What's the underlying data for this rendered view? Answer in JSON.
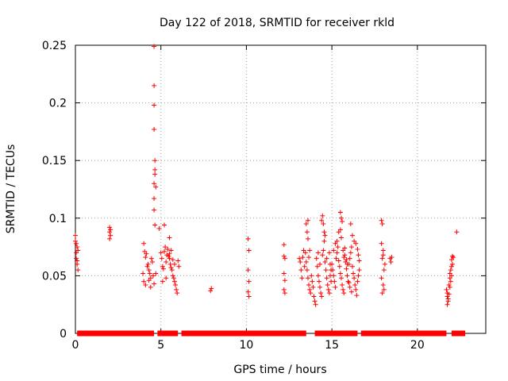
{
  "chart_data": {
    "type": "scatter",
    "title": "Day 122 of 2018, SRMTID for receiver rkld",
    "xlabel": "GPS time / hours",
    "ylabel": "SRMTID / TECUs",
    "xlim": [
      0,
      24
    ],
    "ylim": [
      0,
      0.25
    ],
    "xticks": [
      0,
      5,
      10,
      15,
      20
    ],
    "yticks": [
      0,
      0.05,
      0.1,
      0.15,
      0.2,
      0.25
    ],
    "xtick_labels": [
      "0",
      "5",
      "10",
      "15",
      "20"
    ],
    "ytick_labels": [
      "0",
      "0.05",
      "0.1",
      "0.15",
      "0.2",
      "0.25"
    ],
    "grid": true,
    "marker": "+",
    "color": "#ff0000",
    "zero_segments": [
      [
        0.1,
        4.6
      ],
      [
        4.8,
        6.0
      ],
      [
        6.2,
        13.5
      ],
      [
        14.0,
        16.5
      ],
      [
        16.7,
        21.7
      ],
      [
        22.0,
        22.8
      ]
    ],
    "series": [
      {
        "name": "SRMTID",
        "points": [
          [
            0.0,
            0.085
          ],
          [
            0.05,
            0.078
          ],
          [
            0.05,
            0.07
          ],
          [
            0.1,
            0.075
          ],
          [
            0.1,
            0.063
          ],
          [
            0.05,
            0.065
          ],
          [
            0.1,
            0.06
          ],
          [
            0.15,
            0.055
          ],
          [
            0.15,
            0.072
          ],
          [
            0.0,
            0.08
          ],
          [
            2.0,
            0.092
          ],
          [
            2.0,
            0.088
          ],
          [
            2.05,
            0.085
          ],
          [
            2.0,
            0.082
          ],
          [
            2.05,
            0.09
          ],
          [
            4.0,
            0.078
          ],
          [
            4.05,
            0.071
          ],
          [
            4.1,
            0.066
          ],
          [
            4.15,
            0.069
          ],
          [
            4.2,
            0.058
          ],
          [
            4.25,
            0.06
          ],
          [
            4.3,
            0.055
          ],
          [
            4.35,
            0.052
          ],
          [
            4.4,
            0.048
          ],
          [
            4.45,
            0.065
          ],
          [
            4.5,
            0.062
          ],
          [
            4.55,
            0.05
          ],
          [
            3.95,
            0.052
          ],
          [
            4.0,
            0.045
          ],
          [
            4.1,
            0.042
          ],
          [
            4.3,
            0.046
          ],
          [
            4.4,
            0.04
          ],
          [
            4.6,
            0.043
          ],
          [
            4.7,
            0.052
          ],
          [
            4.6,
            0.249
          ],
          [
            4.6,
            0.215
          ],
          [
            4.6,
            0.198
          ],
          [
            4.6,
            0.177
          ],
          [
            4.65,
            0.15
          ],
          [
            4.65,
            0.142
          ],
          [
            4.65,
            0.138
          ],
          [
            4.6,
            0.13
          ],
          [
            4.7,
            0.127
          ],
          [
            4.6,
            0.117
          ],
          [
            4.6,
            0.107
          ],
          [
            4.65,
            0.094
          ],
          [
            4.9,
            0.091
          ],
          [
            5.2,
            0.094
          ],
          [
            5.5,
            0.083
          ],
          [
            5.0,
            0.07
          ],
          [
            5.05,
            0.065
          ],
          [
            5.1,
            0.058
          ],
          [
            5.15,
            0.056
          ],
          [
            5.2,
            0.071
          ],
          [
            5.25,
            0.075
          ],
          [
            5.3,
            0.062
          ],
          [
            5.35,
            0.068
          ],
          [
            5.4,
            0.073
          ],
          [
            5.45,
            0.067
          ],
          [
            5.5,
            0.069
          ],
          [
            5.55,
            0.06
          ],
          [
            5.6,
            0.057
          ],
          [
            5.65,
            0.055
          ],
          [
            5.7,
            0.05
          ],
          [
            5.75,
            0.048
          ],
          [
            5.8,
            0.045
          ],
          [
            5.85,
            0.042
          ],
          [
            5.9,
            0.038
          ],
          [
            5.95,
            0.035
          ],
          [
            5.1,
            0.045
          ],
          [
            5.3,
            0.048
          ],
          [
            5.5,
            0.065
          ],
          [
            5.6,
            0.072
          ],
          [
            5.7,
            0.064
          ],
          [
            5.8,
            0.06
          ],
          [
            6.0,
            0.063
          ],
          [
            6.05,
            0.058
          ],
          [
            7.9,
            0.037
          ],
          [
            7.95,
            0.039
          ],
          [
            10.1,
            0.082
          ],
          [
            10.15,
            0.072
          ],
          [
            10.1,
            0.055
          ],
          [
            10.15,
            0.045
          ],
          [
            10.1,
            0.036
          ],
          [
            10.15,
            0.032
          ],
          [
            12.2,
            0.077
          ],
          [
            12.2,
            0.067
          ],
          [
            12.25,
            0.065
          ],
          [
            12.2,
            0.052
          ],
          [
            12.25,
            0.046
          ],
          [
            12.2,
            0.038
          ],
          [
            12.25,
            0.035
          ],
          [
            13.1,
            0.065
          ],
          [
            13.15,
            0.062
          ],
          [
            13.2,
            0.055
          ],
          [
            13.25,
            0.048
          ],
          [
            13.3,
            0.066
          ],
          [
            13.35,
            0.072
          ],
          [
            13.4,
            0.058
          ],
          [
            13.45,
            0.07
          ],
          [
            13.5,
            0.062
          ],
          [
            13.55,
            0.055
          ],
          [
            13.6,
            0.048
          ],
          [
            13.65,
            0.042
          ],
          [
            13.7,
            0.038
          ],
          [
            13.75,
            0.035
          ],
          [
            13.8,
            0.05
          ],
          [
            13.85,
            0.045
          ],
          [
            13.9,
            0.04
          ],
          [
            13.95,
            0.032
          ],
          [
            14.0,
            0.028
          ],
          [
            14.05,
            0.025
          ],
          [
            13.5,
            0.095
          ],
          [
            13.55,
            0.088
          ],
          [
            13.6,
            0.082
          ],
          [
            13.6,
            0.098
          ],
          [
            13.65,
            0.066
          ],
          [
            13.7,
            0.072
          ],
          [
            14.1,
            0.065
          ],
          [
            14.15,
            0.058
          ],
          [
            14.2,
            0.05
          ],
          [
            14.25,
            0.045
          ],
          [
            14.3,
            0.04
          ],
          [
            14.35,
            0.035
          ],
          [
            14.4,
            0.032
          ],
          [
            14.45,
            0.068
          ],
          [
            14.5,
            0.072
          ],
          [
            14.55,
            0.08
          ],
          [
            14.6,
            0.062
          ],
          [
            14.65,
            0.055
          ],
          [
            14.7,
            0.048
          ],
          [
            14.75,
            0.042
          ],
          [
            14.8,
            0.038
          ],
          [
            14.85,
            0.035
          ],
          [
            14.9,
            0.06
          ],
          [
            14.95,
            0.055
          ],
          [
            14.4,
            0.098
          ],
          [
            14.45,
            0.102
          ],
          [
            14.5,
            0.095
          ],
          [
            14.55,
            0.088
          ],
          [
            14.6,
            0.085
          ],
          [
            14.3,
            0.06
          ],
          [
            14.2,
            0.07
          ],
          [
            14.7,
            0.065
          ],
          [
            14.85,
            0.07
          ],
          [
            14.9,
            0.05
          ],
          [
            14.95,
            0.045
          ],
          [
            15.0,
            0.06
          ],
          [
            15.05,
            0.055
          ],
          [
            15.1,
            0.05
          ],
          [
            15.15,
            0.045
          ],
          [
            15.2,
            0.04
          ],
          [
            15.25,
            0.065
          ],
          [
            15.3,
            0.07
          ],
          [
            15.35,
            0.075
          ],
          [
            15.4,
            0.063
          ],
          [
            15.45,
            0.058
          ],
          [
            15.5,
            0.052
          ],
          [
            15.55,
            0.048
          ],
          [
            15.6,
            0.042
          ],
          [
            15.65,
            0.038
          ],
          [
            15.7,
            0.035
          ],
          [
            15.75,
            0.068
          ],
          [
            15.8,
            0.062
          ],
          [
            15.85,
            0.056
          ],
          [
            15.9,
            0.05
          ],
          [
            15.95,
            0.045
          ],
          [
            15.5,
            0.105
          ],
          [
            15.55,
            0.1
          ],
          [
            15.6,
            0.097
          ],
          [
            15.5,
            0.09
          ],
          [
            15.55,
            0.083
          ],
          [
            15.4,
            0.088
          ],
          [
            15.3,
            0.08
          ],
          [
            15.2,
            0.078
          ],
          [
            15.1,
            0.072
          ],
          [
            15.65,
            0.072
          ],
          [
            15.7,
            0.066
          ],
          [
            15.75,
            0.074
          ],
          [
            15.85,
            0.064
          ],
          [
            15.9,
            0.06
          ],
          [
            16.0,
            0.06
          ],
          [
            16.05,
            0.065
          ],
          [
            16.1,
            0.07
          ],
          [
            16.15,
            0.075
          ],
          [
            16.2,
            0.058
          ],
          [
            16.25,
            0.052
          ],
          [
            16.3,
            0.048
          ],
          [
            16.35,
            0.042
          ],
          [
            16.4,
            0.038
          ],
          [
            16.45,
            0.033
          ],
          [
            16.5,
            0.045
          ],
          [
            16.55,
            0.05
          ],
          [
            16.6,
            0.055
          ],
          [
            16.1,
            0.095
          ],
          [
            16.2,
            0.085
          ],
          [
            16.3,
            0.08
          ],
          [
            16.4,
            0.078
          ],
          [
            16.5,
            0.073
          ],
          [
            16.55,
            0.068
          ],
          [
            16.6,
            0.063
          ],
          [
            16.0,
            0.044
          ],
          [
            16.05,
            0.04
          ],
          [
            16.15,
            0.036
          ],
          [
            17.9,
            0.098
          ],
          [
            17.95,
            0.095
          ],
          [
            17.9,
            0.078
          ],
          [
            18.0,
            0.072
          ],
          [
            17.95,
            0.065
          ],
          [
            18.0,
            0.068
          ],
          [
            18.05,
            0.055
          ],
          [
            17.9,
            0.048
          ],
          [
            18.0,
            0.042
          ],
          [
            18.05,
            0.038
          ],
          [
            17.95,
            0.035
          ],
          [
            18.1,
            0.06
          ],
          [
            18.4,
            0.065
          ],
          [
            18.45,
            0.062
          ],
          [
            18.5,
            0.066
          ],
          [
            21.7,
            0.038
          ],
          [
            21.75,
            0.035
          ],
          [
            21.75,
            0.032
          ],
          [
            21.8,
            0.028
          ],
          [
            21.75,
            0.025
          ],
          [
            21.85,
            0.042
          ],
          [
            21.9,
            0.048
          ],
          [
            21.95,
            0.045
          ],
          [
            22.0,
            0.05
          ],
          [
            21.95,
            0.055
          ],
          [
            22.0,
            0.058
          ],
          [
            22.05,
            0.06
          ],
          [
            22.0,
            0.064
          ],
          [
            22.05,
            0.067
          ],
          [
            22.1,
            0.066
          ],
          [
            21.8,
            0.03
          ],
          [
            21.85,
            0.034
          ],
          [
            21.9,
            0.04
          ],
          [
            21.9,
            0.052
          ],
          [
            22.3,
            0.088
          ]
        ]
      }
    ]
  }
}
